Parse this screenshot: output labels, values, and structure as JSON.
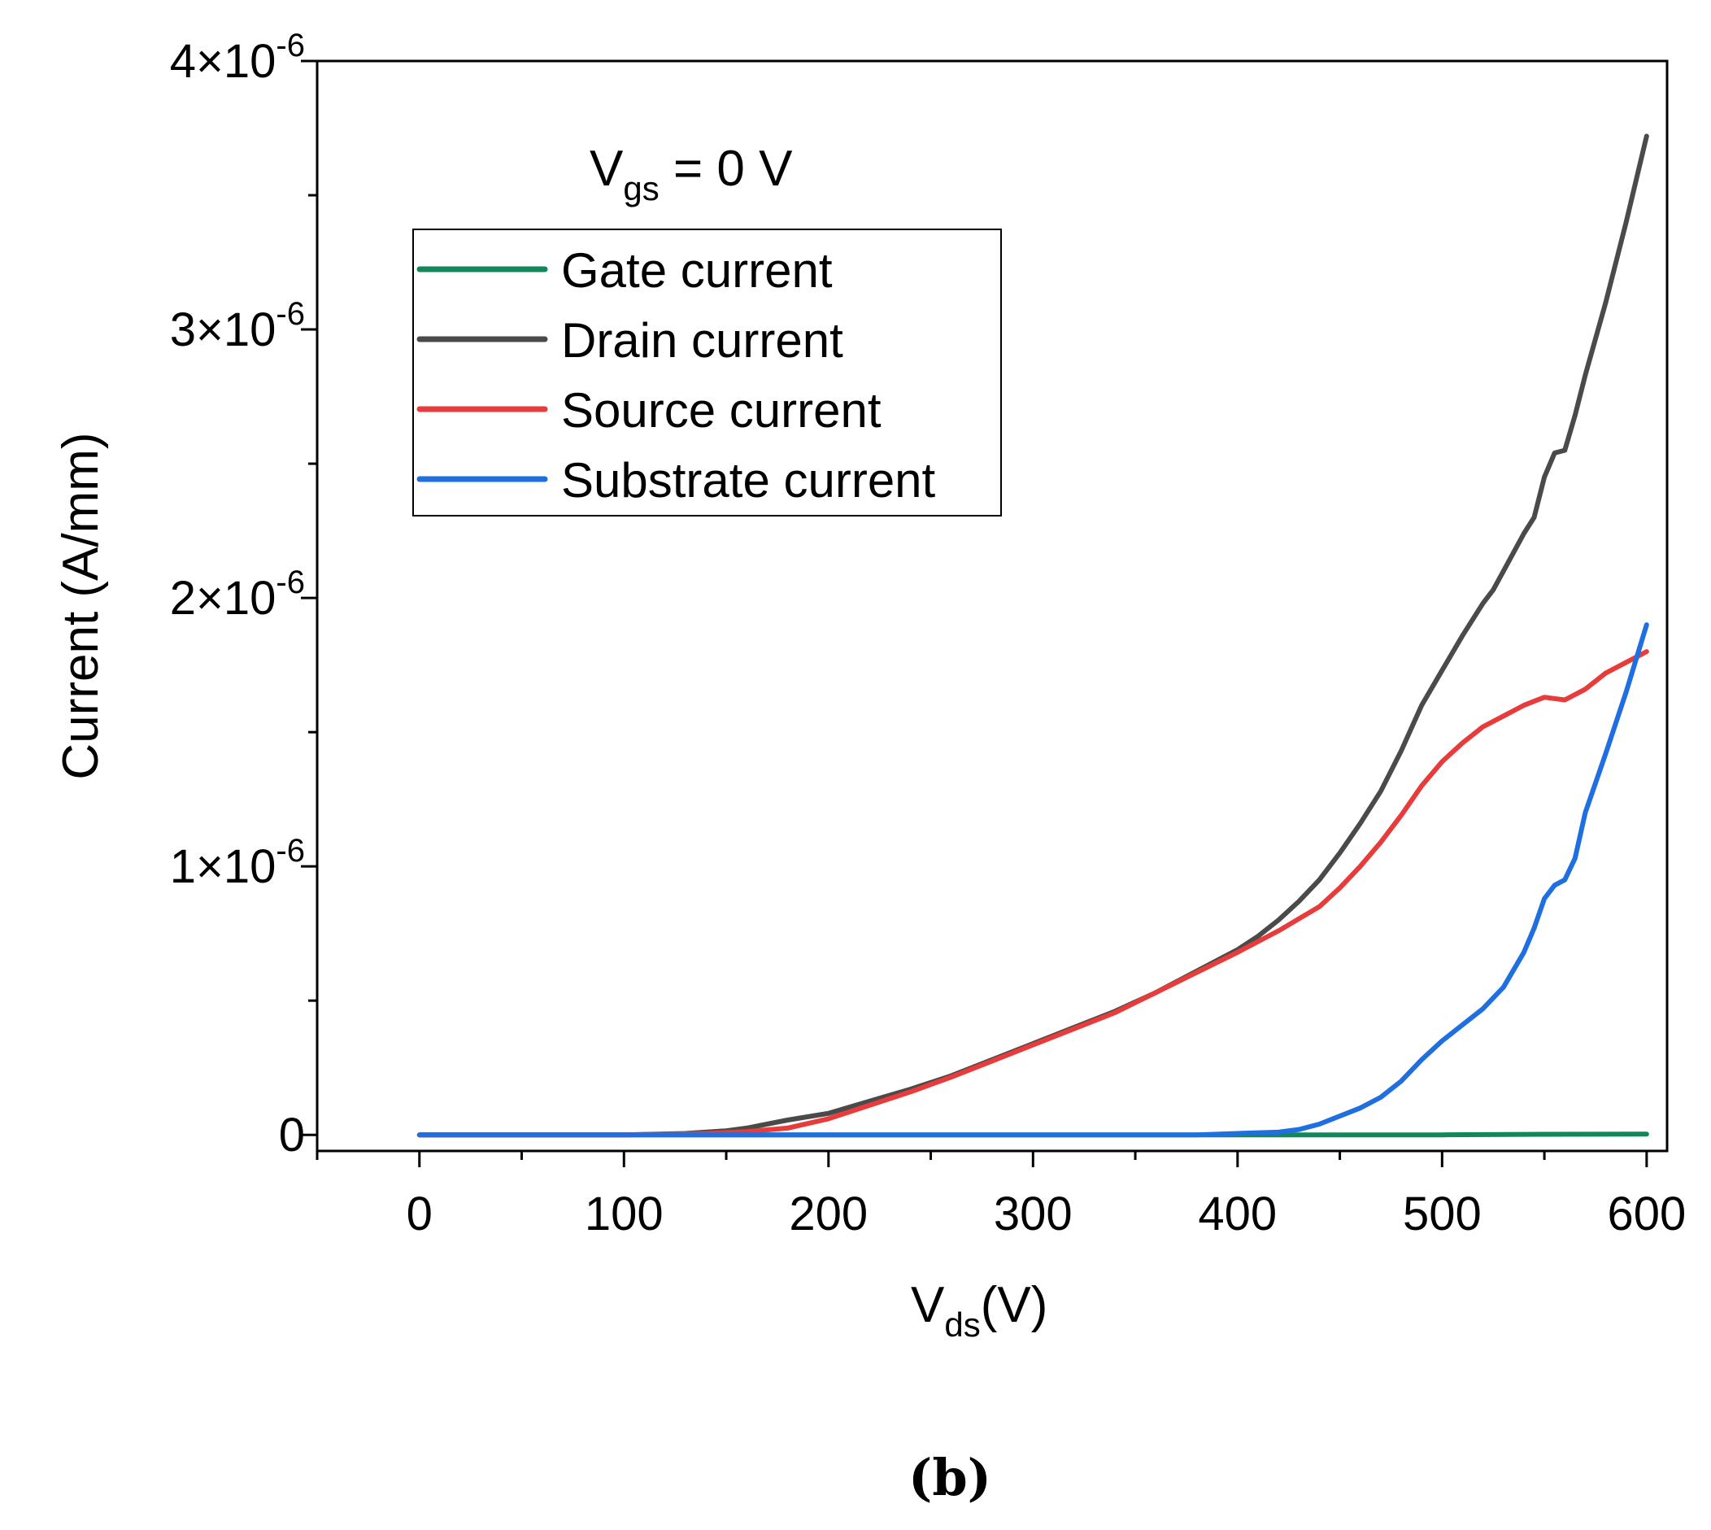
{
  "chart_data": {
    "type": "line",
    "caption": "(b)",
    "annotation": {
      "main": "V",
      "sub": "gs",
      "rest": " = 0 V"
    },
    "xlabel": {
      "main": "V",
      "sub": "ds",
      "rest": "(V)"
    },
    "ylabel": "Current (A/mm)",
    "xlim": [
      -50,
      610
    ],
    "ylim": [
      -0.06,
      4.0
    ],
    "x_ticks": [
      0,
      100,
      200,
      300,
      400,
      500,
      600
    ],
    "x_tick_labels": [
      "0",
      "100",
      "200",
      "300",
      "400",
      "500",
      "600"
    ],
    "y_ticks": [
      0,
      1,
      2,
      3,
      4
    ],
    "y_tick_labels": [
      {
        "mantissa": "0",
        "exp": ""
      },
      {
        "mantissa": "1×10",
        "exp": "-6"
      },
      {
        "mantissa": "2×10",
        "exp": "-6"
      },
      {
        "mantissa": "3×10",
        "exp": "-6"
      },
      {
        "mantissa": "4×10",
        "exp": "-6"
      }
    ],
    "y_unit_note": "values in units of 1e-6 A/mm",
    "legend_position": "top-left",
    "series": [
      {
        "name": "Gate current",
        "color": "#13875a",
        "points": [
          [
            0,
            0
          ],
          [
            100,
            0
          ],
          [
            200,
            0
          ],
          [
            300,
            0
          ],
          [
            400,
            0
          ],
          [
            500,
            0
          ],
          [
            550,
            0.002
          ],
          [
            600,
            0.003
          ]
        ]
      },
      {
        "name": "Drain current",
        "color": "#4a4a4a",
        "points": [
          [
            0,
            0
          ],
          [
            100,
            0
          ],
          [
            130,
            0.005
          ],
          [
            150,
            0.015
          ],
          [
            160,
            0.025
          ],
          [
            180,
            0.055
          ],
          [
            200,
            0.08
          ],
          [
            220,
            0.125
          ],
          [
            240,
            0.17
          ],
          [
            260,
            0.22
          ],
          [
            280,
            0.28
          ],
          [
            300,
            0.34
          ],
          [
            320,
            0.4
          ],
          [
            340,
            0.46
          ],
          [
            360,
            0.53
          ],
          [
            380,
            0.61
          ],
          [
            400,
            0.69
          ],
          [
            410,
            0.74
          ],
          [
            420,
            0.8
          ],
          [
            430,
            0.87
          ],
          [
            440,
            0.95
          ],
          [
            450,
            1.05
          ],
          [
            460,
            1.16
          ],
          [
            470,
            1.28
          ],
          [
            480,
            1.43
          ],
          [
            490,
            1.6
          ],
          [
            500,
            1.73
          ],
          [
            510,
            1.86
          ],
          [
            520,
            1.98
          ],
          [
            525,
            2.03
          ],
          [
            530,
            2.1
          ],
          [
            540,
            2.24
          ],
          [
            545,
            2.3
          ],
          [
            550,
            2.45
          ],
          [
            555,
            2.54
          ],
          [
            560,
            2.55
          ],
          [
            565,
            2.68
          ],
          [
            570,
            2.83
          ],
          [
            580,
            3.1
          ],
          [
            590,
            3.4
          ],
          [
            600,
            3.72
          ]
        ]
      },
      {
        "name": "Source current",
        "color": "#e83b3b",
        "points": [
          [
            0,
            0
          ],
          [
            100,
            0
          ],
          [
            140,
            0.005
          ],
          [
            160,
            0.012
          ],
          [
            180,
            0.025
          ],
          [
            200,
            0.06
          ],
          [
            220,
            0.11
          ],
          [
            240,
            0.16
          ],
          [
            260,
            0.215
          ],
          [
            280,
            0.275
          ],
          [
            300,
            0.335
          ],
          [
            320,
            0.395
          ],
          [
            340,
            0.455
          ],
          [
            360,
            0.53
          ],
          [
            380,
            0.605
          ],
          [
            400,
            0.68
          ],
          [
            420,
            0.76
          ],
          [
            440,
            0.85
          ],
          [
            450,
            0.92
          ],
          [
            460,
            1.0
          ],
          [
            470,
            1.09
          ],
          [
            480,
            1.19
          ],
          [
            490,
            1.3
          ],
          [
            500,
            1.39
          ],
          [
            510,
            1.46
          ],
          [
            520,
            1.52
          ],
          [
            530,
            1.56
          ],
          [
            540,
            1.6
          ],
          [
            550,
            1.63
          ],
          [
            560,
            1.62
          ],
          [
            570,
            1.66
          ],
          [
            580,
            1.72
          ],
          [
            590,
            1.76
          ],
          [
            600,
            1.8
          ]
        ]
      },
      {
        "name": "Substrate current",
        "color": "#1f6fe0",
        "points": [
          [
            0,
            0
          ],
          [
            100,
            0
          ],
          [
            200,
            0
          ],
          [
            300,
            0
          ],
          [
            380,
            0
          ],
          [
            400,
            0.005
          ],
          [
            420,
            0.01
          ],
          [
            430,
            0.02
          ],
          [
            440,
            0.04
          ],
          [
            450,
            0.07
          ],
          [
            460,
            0.1
          ],
          [
            470,
            0.14
          ],
          [
            480,
            0.2
          ],
          [
            490,
            0.28
          ],
          [
            500,
            0.35
          ],
          [
            510,
            0.41
          ],
          [
            520,
            0.47
          ],
          [
            530,
            0.55
          ],
          [
            540,
            0.68
          ],
          [
            545,
            0.77
          ],
          [
            550,
            0.88
          ],
          [
            555,
            0.93
          ],
          [
            560,
            0.95
          ],
          [
            565,
            1.03
          ],
          [
            570,
            1.2
          ],
          [
            580,
            1.42
          ],
          [
            590,
            1.65
          ],
          [
            600,
            1.9
          ]
        ]
      }
    ]
  }
}
